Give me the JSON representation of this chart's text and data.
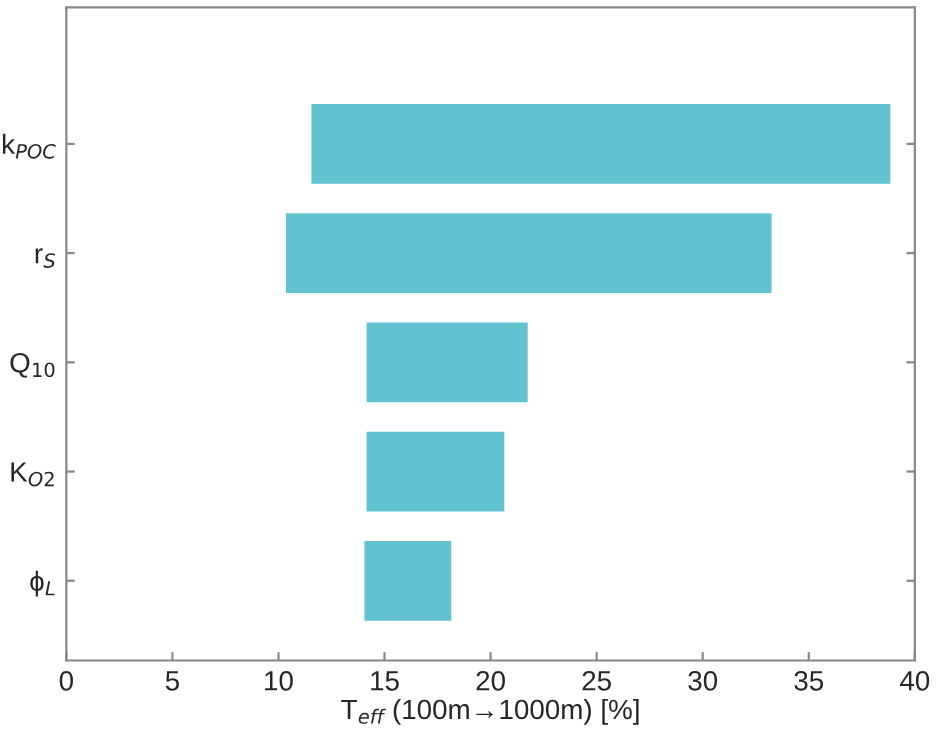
{
  "chart_data": {
    "type": "bar",
    "orientation": "horizontal",
    "xlabel": "T$_{eff}$ (100m→1000m) [%]",
    "categories": [
      "k$_{POC}$",
      "r$_{S}$",
      "Q$_{10}$",
      "K$_{O2}$",
      "ϕ$_{L}$"
    ],
    "base": [
      11.5,
      10.3,
      14.1,
      14.1,
      14.0
    ],
    "values": [
      27.4,
      23.0,
      7.7,
      6.6,
      4.2
    ],
    "color": "#62c3d0",
    "xlim": [
      0,
      40
    ],
    "xticks": [
      0,
      5,
      10,
      15,
      20,
      25,
      30,
      35,
      40
    ],
    "grid": false,
    "legend": false
  }
}
